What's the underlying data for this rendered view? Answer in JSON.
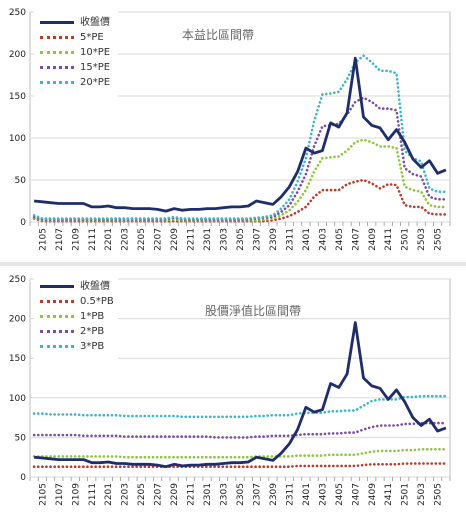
{
  "chart_data": [
    {
      "type": "line",
      "title": "本益比區間帶",
      "x": [
        "2104",
        "2105",
        "2106",
        "2107",
        "2108",
        "2109",
        "2110",
        "2111",
        "2112",
        "2201",
        "2202",
        "2203",
        "2204",
        "2205",
        "2206",
        "2207",
        "2208",
        "2209",
        "2210",
        "2211",
        "2212",
        "2301",
        "2302",
        "2303",
        "2304",
        "2305",
        "2306",
        "2307",
        "2308",
        "2309",
        "2310",
        "2311",
        "2312",
        "2401",
        "2402",
        "2403",
        "2404",
        "2405",
        "2406",
        "2407",
        "2408",
        "2409",
        "2410",
        "2411",
        "2412",
        "2501",
        "2502",
        "2503",
        "2504",
        "2505",
        "2506"
      ],
      "xticks": [
        "2105",
        "2107",
        "2109",
        "2111",
        "2201",
        "2203",
        "2205",
        "2207",
        "2209",
        "2211",
        "2301",
        "2303",
        "2305",
        "2307",
        "2309",
        "2311",
        "2401",
        "2403",
        "2405",
        "2407",
        "2409",
        "2411",
        "2501",
        "2503",
        "2505"
      ],
      "yticks": [
        "0",
        "50",
        "100",
        "150",
        "200",
        "250"
      ],
      "ylim": [
        0,
        250
      ],
      "grid": true,
      "legend_position": "top-left",
      "series": [
        {
          "name": "收盤價",
          "color": "#1f2d6b",
          "style": "solid",
          "values": [
            25,
            24,
            23,
            22,
            22,
            22,
            22,
            18,
            18,
            19,
            17,
            17,
            16,
            16,
            16,
            15,
            13,
            16,
            14,
            15,
            15,
            16,
            16,
            17,
            18,
            18,
            19,
            25,
            23,
            21,
            30,
            42,
            60,
            88,
            82,
            85,
            118,
            113,
            130,
            195,
            125,
            115,
            112,
            98,
            110,
            95,
            75,
            65,
            73,
            58,
            62
          ]
        },
        {
          "name": "5*PE",
          "color": "#c0392b",
          "style": "dotted",
          "values": [
            4,
            1,
            1,
            1,
            1,
            1,
            1,
            1,
            1,
            1,
            1,
            1,
            1,
            1,
            1,
            1,
            1,
            1,
            1,
            1,
            1,
            1,
            1,
            1,
            1,
            1,
            1,
            1,
            1,
            2,
            4,
            7,
            12,
            18,
            30,
            38,
            38,
            38,
            45,
            48,
            50,
            46,
            40,
            45,
            44,
            20,
            18,
            18,
            10,
            9,
            9
          ]
        },
        {
          "name": "10*PE",
          "color": "#8dc63f",
          "style": "dotted",
          "values": [
            5,
            2,
            2,
            2,
            2,
            2,
            2,
            2,
            2,
            2,
            2,
            2,
            2,
            2,
            2,
            2,
            2,
            3,
            2,
            2,
            2,
            2,
            2,
            2,
            2,
            2,
            2,
            2,
            3,
            4,
            8,
            14,
            24,
            38,
            60,
            76,
            77,
            78,
            85,
            95,
            98,
            95,
            90,
            90,
            88,
            42,
            38,
            36,
            20,
            18,
            18
          ]
        },
        {
          "name": "15*PE",
          "color": "#7b4fa0",
          "style": "dotted",
          "values": [
            6,
            3,
            3,
            3,
            3,
            3,
            3,
            3,
            3,
            3,
            3,
            3,
            3,
            3,
            3,
            3,
            3,
            5,
            3,
            3,
            3,
            3,
            3,
            3,
            3,
            3,
            3,
            4,
            5,
            6,
            12,
            20,
            36,
            57,
            90,
            114,
            115,
            117,
            128,
            143,
            148,
            143,
            135,
            135,
            133,
            64,
            57,
            54,
            30,
            27,
            27
          ]
        },
        {
          "name": "20*PE",
          "color": "#3fb5c9",
          "style": "dotted",
          "values": [
            8,
            4,
            4,
            4,
            4,
            4,
            4,
            4,
            4,
            4,
            4,
            4,
            4,
            4,
            4,
            4,
            4,
            6,
            4,
            4,
            4,
            4,
            4,
            4,
            4,
            4,
            4,
            5,
            6,
            8,
            16,
            27,
            48,
            76,
            120,
            152,
            153,
            155,
            170,
            190,
            198,
            190,
            180,
            180,
            177,
            85,
            76,
            72,
            40,
            36,
            36
          ]
        }
      ]
    },
    {
      "type": "line",
      "title": "股價淨值比區間帶",
      "x": [
        "2104",
        "2105",
        "2106",
        "2107",
        "2108",
        "2109",
        "2110",
        "2111",
        "2112",
        "2201",
        "2202",
        "2203",
        "2204",
        "2205",
        "2206",
        "2207",
        "2208",
        "2209",
        "2210",
        "2211",
        "2212",
        "2301",
        "2302",
        "2303",
        "2304",
        "2305",
        "2306",
        "2307",
        "2308",
        "2309",
        "2310",
        "2311",
        "2312",
        "2401",
        "2402",
        "2403",
        "2404",
        "2405",
        "2406",
        "2407",
        "2408",
        "2409",
        "2410",
        "2411",
        "2412",
        "2501",
        "2502",
        "2503",
        "2504",
        "2505",
        "2506"
      ],
      "xticks": [
        "2105",
        "2107",
        "2109",
        "2111",
        "2201",
        "2203",
        "2205",
        "2207",
        "2209",
        "2211",
        "2301",
        "2303",
        "2305",
        "2307",
        "2309",
        "2311",
        "2401",
        "2403",
        "2405",
        "2407",
        "2409",
        "2411",
        "2501",
        "2503",
        "2505"
      ],
      "yticks": [
        "0",
        "50",
        "100",
        "150",
        "200",
        "250"
      ],
      "ylim": [
        0,
        250
      ],
      "grid": true,
      "legend_position": "top-left",
      "series": [
        {
          "name": "收盤價",
          "color": "#1f2d6b",
          "style": "solid",
          "values": [
            25,
            24,
            23,
            22,
            22,
            22,
            22,
            18,
            18,
            19,
            17,
            17,
            16,
            16,
            16,
            15,
            13,
            16,
            14,
            15,
            15,
            16,
            16,
            17,
            18,
            18,
            19,
            25,
            23,
            21,
            30,
            42,
            60,
            88,
            82,
            85,
            118,
            113,
            130,
            195,
            125,
            115,
            112,
            98,
            110,
            95,
            75,
            65,
            73,
            58,
            62
          ]
        },
        {
          "name": "0.5*PB",
          "color": "#c0392b",
          "style": "dotted",
          "values": [
            13,
            13,
            13,
            13,
            13,
            13,
            13,
            13,
            13,
            13,
            13,
            13,
            13,
            13,
            13,
            13,
            13,
            13,
            13,
            13,
            13,
            13,
            13,
            13,
            13,
            13,
            13,
            13,
            13,
            13,
            13,
            13,
            14,
            14,
            14,
            14,
            14,
            14,
            14,
            14,
            15,
            16,
            16,
            16,
            16,
            17,
            17,
            17,
            17,
            17,
            17
          ]
        },
        {
          "name": "1*PB",
          "color": "#8dc63f",
          "style": "dotted",
          "values": [
            26,
            26,
            26,
            26,
            26,
            26,
            26,
            26,
            26,
            26,
            26,
            25,
            25,
            25,
            25,
            25,
            25,
            25,
            25,
            25,
            25,
            25,
            25,
            25,
            25,
            25,
            25,
            26,
            26,
            26,
            26,
            26,
            27,
            27,
            27,
            27,
            28,
            28,
            28,
            28,
            30,
            32,
            33,
            33,
            33,
            34,
            34,
            35,
            35,
            35,
            35
          ]
        },
        {
          "name": "2*PB",
          "color": "#7b4fa0",
          "style": "dotted",
          "values": [
            53,
            53,
            53,
            53,
            53,
            53,
            52,
            52,
            52,
            52,
            52,
            51,
            51,
            51,
            51,
            51,
            51,
            51,
            51,
            51,
            51,
            51,
            50,
            50,
            50,
            50,
            50,
            51,
            51,
            52,
            52,
            52,
            53,
            54,
            54,
            54,
            55,
            55,
            56,
            56,
            60,
            63,
            65,
            65,
            65,
            67,
            67,
            68,
            68,
            68,
            68
          ]
        },
        {
          "name": "3*PB",
          "color": "#3fb5c9",
          "style": "dotted",
          "values": [
            80,
            80,
            79,
            79,
            79,
            79,
            78,
            78,
            78,
            78,
            78,
            77,
            77,
            77,
            77,
            77,
            77,
            77,
            76,
            76,
            76,
            76,
            76,
            76,
            76,
            76,
            76,
            77,
            77,
            78,
            78,
            78,
            80,
            81,
            81,
            81,
            83,
            83,
            84,
            84,
            90,
            96,
            98,
            98,
            98,
            101,
            101,
            102,
            102,
            102,
            102
          ]
        }
      ]
    }
  ]
}
